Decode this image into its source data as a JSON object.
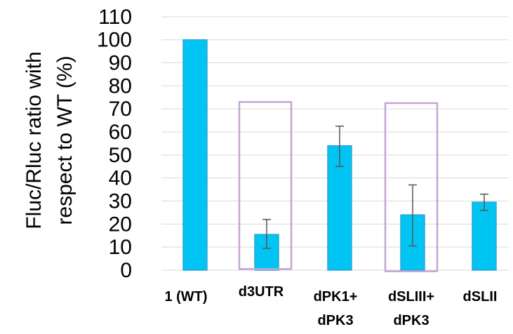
{
  "chart_data": {
    "type": "bar",
    "title": "",
    "xlabel": "",
    "ylabel_lines": [
      "Fluc/Rluc ratio with",
      "respect to WT (%)"
    ],
    "categories": [
      {
        "lines": [
          "1 (WT)"
        ]
      },
      {
        "lines": [
          "d3UTR"
        ]
      },
      {
        "lines": [
          "dPK1+",
          "dPK3"
        ]
      },
      {
        "lines": [
          "dSLIII+",
          "dPK3"
        ]
      },
      {
        "lines": [
          "dSLII"
        ]
      }
    ],
    "values": [
      100,
      15.5,
      54,
      24,
      29.5
    ],
    "error_low": [
      100,
      9.5,
      45,
      10.5,
      26
    ],
    "error_high": [
      100,
      22,
      62.5,
      37,
      33
    ],
    "ylim": [
      0,
      110
    ],
    "yticks": [
      0,
      10,
      20,
      30,
      40,
      50,
      60,
      70,
      80,
      90,
      100,
      110
    ],
    "grid": true,
    "highlight_boxes": [
      {
        "category_index": 1,
        "top_value": 73,
        "bottom_value": 0.5
      },
      {
        "category_index": 3,
        "top_value": 72.5,
        "bottom_value": -0.5
      }
    ],
    "colors": {
      "bar_fill": "#00c5f2",
      "bar_stroke": "#2fa3d8",
      "grid": "#d9d9d9",
      "error_bar": "#555555",
      "highlight_box": "#c2a6d6"
    }
  }
}
